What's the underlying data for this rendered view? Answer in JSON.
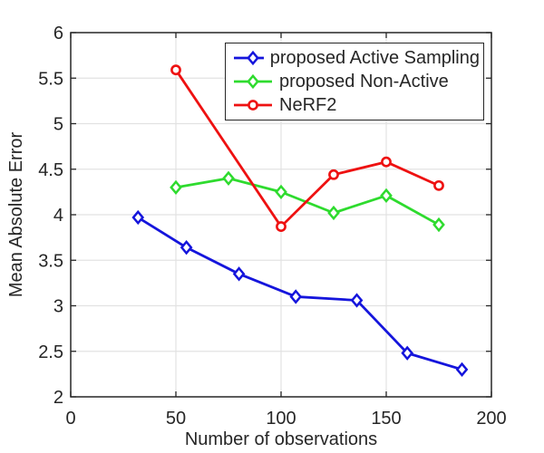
{
  "figure": {
    "background": "#FFFFFF",
    "axis_color": "#262626",
    "grid_color": "#E2E2E2",
    "text_color": "#262626"
  },
  "chart_data": {
    "type": "line",
    "title": "",
    "xlabel": "Number of observations",
    "ylabel": "Mean Absolute Error",
    "xlim": [
      0,
      200
    ],
    "ylim": [
      2,
      6
    ],
    "xticks": [
      0,
      50,
      100,
      150,
      200
    ],
    "yticks": [
      2,
      2.5,
      3,
      3.5,
      4,
      4.5,
      5,
      5.5,
      6
    ],
    "grid": true,
    "legend": {
      "position": "top-center-inside",
      "entries": [
        "proposed Active Sampling",
        "proposed Non-Active",
        "NeRF2"
      ]
    },
    "series": [
      {
        "name": "proposed Active Sampling",
        "color": "#1515DC",
        "marker": "diamond",
        "x": [
          32,
          55,
          80,
          107,
          136,
          160,
          186
        ],
        "y": [
          3.97,
          3.64,
          3.35,
          3.1,
          3.06,
          2.48,
          2.3
        ]
      },
      {
        "name": "proposed Non-Active",
        "color": "#2EDB2E",
        "marker": "diamond",
        "x": [
          50,
          75,
          100,
          125,
          150,
          175
        ],
        "y": [
          4.3,
          4.4,
          4.25,
          4.02,
          4.21,
          3.89
        ]
      },
      {
        "name": "NeRF2",
        "color": "#EE1111",
        "marker": "circle",
        "x": [
          50,
          100,
          125,
          150,
          175
        ],
        "y": [
          5.59,
          3.87,
          4.44,
          4.58,
          4.32
        ]
      }
    ]
  }
}
